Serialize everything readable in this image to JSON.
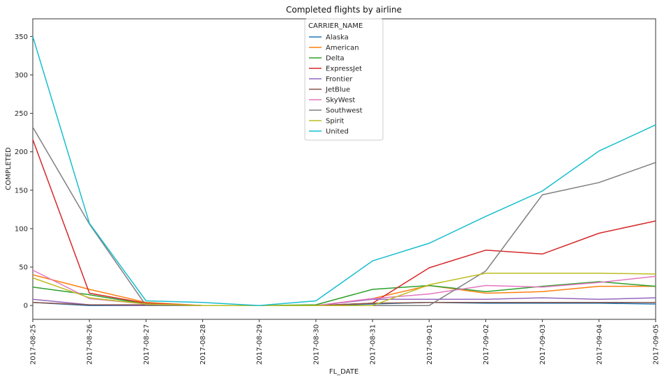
{
  "chart_data": {
    "type": "line",
    "title": "Completed flights by airline",
    "xlabel": "FL_DATE",
    "ylabel": "COMPLETED",
    "legend_title": "CARRIER_NAME",
    "legend_position": "top-center",
    "ylim": [
      -18,
      373
    ],
    "yticks": [
      0,
      50,
      100,
      150,
      200,
      250,
      300,
      350
    ],
    "categories": [
      "2017-08-25",
      "2017-08-26",
      "2017-08-27",
      "2017-08-28",
      "2017-08-29",
      "2017-08-30",
      "2017-08-31",
      "2017-09-01",
      "2017-09-02",
      "2017-09-03",
      "2017-09-04",
      "2017-09-05"
    ],
    "series": [
      {
        "name": "Alaska",
        "color": "#1f77b4",
        "values": [
          4,
          0,
          0,
          0,
          0,
          0,
          2,
          4,
          3,
          3,
          3,
          2
        ]
      },
      {
        "name": "American",
        "color": "#ff7f0e",
        "values": [
          40,
          21,
          4,
          0,
          0,
          0,
          9,
          26,
          16,
          18,
          25,
          25
        ]
      },
      {
        "name": "Delta",
        "color": "#2ca02c",
        "values": [
          24,
          14,
          2,
          0,
          0,
          1,
          21,
          26,
          18,
          25,
          31,
          25
        ]
      },
      {
        "name": "ExpressJet",
        "color": "#d62728",
        "values": [
          216,
          16,
          3,
          0,
          0,
          0,
          3,
          49,
          72,
          67,
          94,
          110
        ]
      },
      {
        "name": "Frontier",
        "color": "#9467bd",
        "values": [
          8,
          1,
          0,
          0,
          0,
          0,
          8,
          8,
          8,
          10,
          8,
          10
        ]
      },
      {
        "name": "JetBlue",
        "color": "#8c564b",
        "values": [
          4,
          1,
          1,
          0,
          0,
          0,
          3,
          4,
          4,
          4,
          4,
          4
        ]
      },
      {
        "name": "SkyWest",
        "color": "#e377c2",
        "values": [
          46,
          9,
          2,
          0,
          0,
          0,
          9,
          15,
          26,
          24,
          30,
          38
        ]
      },
      {
        "name": "Southwest",
        "color": "#7f7f7f",
        "values": [
          232,
          106,
          0,
          0,
          0,
          0,
          0,
          0,
          45,
          144,
          160,
          186
        ]
      },
      {
        "name": "Spirit",
        "color": "#bcbd22",
        "values": [
          36,
          10,
          2,
          0,
          0,
          0,
          0,
          27,
          42,
          42,
          42,
          41
        ]
      },
      {
        "name": "United",
        "color": "#17becf",
        "values": [
          350,
          107,
          6,
          4,
          0,
          6,
          58,
          81,
          116,
          149,
          201,
          235
        ]
      }
    ]
  }
}
